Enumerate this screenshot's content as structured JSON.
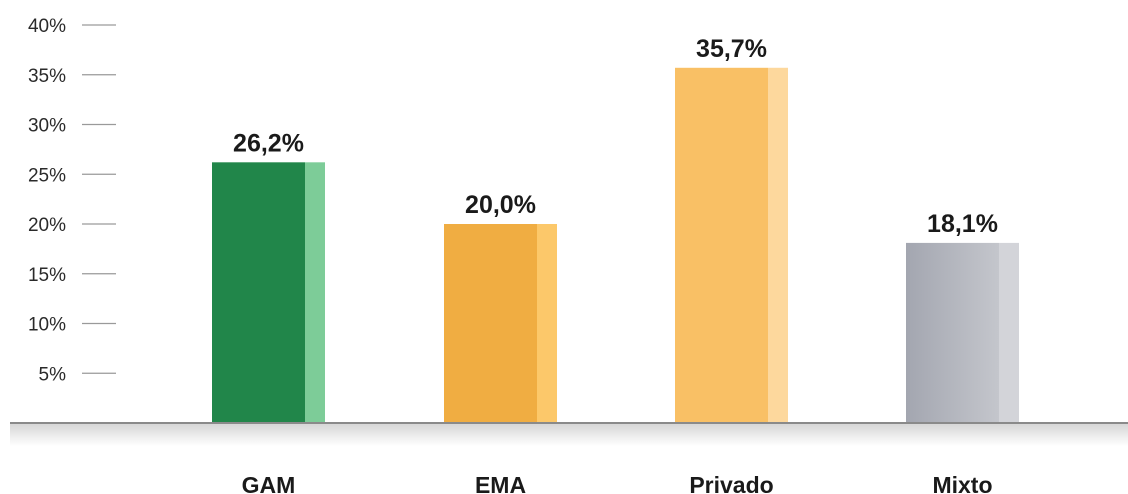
{
  "chart_data": {
    "type": "bar",
    "categories": [
      "GAM",
      "EMA",
      "Privado",
      "Mixto"
    ],
    "values": [
      26.2,
      20.0,
      35.7,
      18.1
    ],
    "data_labels": [
      "26,2%",
      "20,0%",
      "35,7%",
      "18,1%"
    ],
    "y_ticks": [
      5,
      10,
      15,
      20,
      25,
      30,
      35,
      40
    ],
    "y_tick_labels": [
      "5%",
      "10%",
      "15%",
      "20%",
      "25%",
      "30%",
      "35%",
      "40%"
    ],
    "ylim": [
      0,
      40
    ],
    "grid": false,
    "title": "",
    "xlabel": "",
    "ylabel": "",
    "bar_colors": [
      {
        "main": "#21864a",
        "side": "#7dcc98"
      },
      {
        "main": "#f0ad42",
        "side": "#fcc86a"
      },
      {
        "main": "#f9c065",
        "side": "#fdd89d"
      },
      {
        "main": "#a7a9b3",
        "side": "#d3d4d9"
      }
    ],
    "axis_color": "#8a8a8a",
    "tick_color": "#9a9a9a"
  }
}
